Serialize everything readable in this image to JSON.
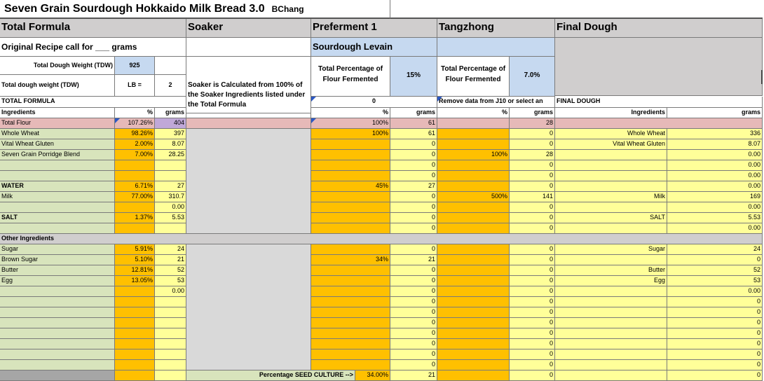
{
  "title": "Seven Grain Sourdough Hokkaido Milk Bread 3.0",
  "author": "BChang",
  "sections": {
    "total_formula": "Total Formula",
    "soaker": "Soaker",
    "preferment": "Preferment 1",
    "tangzhong": "Tangzhong",
    "final_dough": "Final Dough"
  },
  "original_recipe": "Original Recipe call for ___ grams",
  "sourdough_levain": "Sourdough Levain",
  "tdw": {
    "label": "Total Dough Weight (TDW)",
    "value": "925"
  },
  "tdw_lb": {
    "label": "Total dough weight (TDW)",
    "unit": "LB  =",
    "value": "2"
  },
  "soaker_note": "Soaker is Calculated from 100% of the Soaker Ingredients listed under the Total Formula",
  "preferment_pct": {
    "label": "Total Percentage of Flour Fermented",
    "value": "15%"
  },
  "tangzhong_pct": {
    "label": "Total Percentage of Flour Fermented",
    "value": "7.0%"
  },
  "total_formula_label": "TOTAL FORMULA",
  "preferment_zero": "0",
  "tangzhong_note": "Remove data from J10 or select an",
  "final_dough_label": "FINAL DOUGH",
  "headers": {
    "ingredients": "Ingredients",
    "pct": "%",
    "grams": "grams"
  },
  "flour_row": {
    "label": "Total Flour",
    "pct": "107.26%",
    "grams": "404",
    "pre_pct": "100%",
    "pre_g": "61",
    "tz_g": "28"
  },
  "rows": [
    {
      "name": "Whole Wheat",
      "pct": "98.26%",
      "g": "397",
      "pp": "100%",
      "pg": "61",
      "tp": "",
      "tg": "0",
      "fn": "Whole Wheat",
      "fg": "336"
    },
    {
      "name": "Vital Wheat Gluten",
      "pct": "2.00%",
      "g": "8.07",
      "pp": "",
      "pg": "0",
      "tp": "",
      "tg": "0",
      "fn": "Vital Wheat Gluten",
      "fg": "8.07"
    },
    {
      "name": "Seven Grain Porridge Blend",
      "pct": "7.00%",
      "g": "28.25",
      "pp": "",
      "pg": "0",
      "tp": "100%",
      "tg": "28",
      "fn": "",
      "fg": "0.00"
    },
    {
      "name": "",
      "pct": "",
      "g": "",
      "pp": "",
      "pg": "0",
      "tp": "",
      "tg": "0",
      "fn": "",
      "fg": "0.00"
    },
    {
      "name": "",
      "pct": "",
      "g": "",
      "pp": "",
      "pg": "0",
      "tp": "",
      "tg": "0",
      "fn": "",
      "fg": "0.00"
    },
    {
      "name": "WATER",
      "pct": "6.71%",
      "g": "27",
      "pp": "45%",
      "pg": "27",
      "tp": "",
      "tg": "0",
      "fn": "",
      "fg": "0.00",
      "bold": true
    },
    {
      "name": "Milk",
      "pct": "77.00%",
      "g": "310.7",
      "pp": "",
      "pg": "0",
      "tp": "500%",
      "tg": "141",
      "fn": "Milk",
      "fg": "169"
    },
    {
      "name": "",
      "pct": "",
      "g": "0.00",
      "pp": "",
      "pg": "0",
      "tp": "",
      "tg": "0",
      "fn": "",
      "fg": "0.00"
    },
    {
      "name": "SALT",
      "pct": "1.37%",
      "g": "5.53",
      "pp": "",
      "pg": "0",
      "tp": "",
      "tg": "0",
      "fn": "SALT",
      "fg": "5.53",
      "bold": true
    },
    {
      "name": "",
      "pct": "",
      "g": "",
      "pp": "",
      "pg": "0",
      "tp": "",
      "tg": "0",
      "fn": "",
      "fg": "0.00"
    }
  ],
  "other_ingredients": "Other Ingredients",
  "other_rows": [
    {
      "name": "Sugar",
      "pct": "5.91%",
      "g": "24",
      "pp": "",
      "pg": "0",
      "tp": "",
      "tg": "0",
      "fn": "Sugar",
      "fg": "24"
    },
    {
      "name": "Brown Sugar",
      "pct": "5.10%",
      "g": "21",
      "pp": "34%",
      "pg": "21",
      "tp": "",
      "tg": "0",
      "fn": "",
      "fg": "0"
    },
    {
      "name": "Butter",
      "pct": "12.81%",
      "g": "52",
      "pp": "",
      "pg": "0",
      "tp": "",
      "tg": "0",
      "fn": "Butter",
      "fg": "52"
    },
    {
      "name": "Egg",
      "pct": "13.05%",
      "g": "53",
      "pp": "",
      "pg": "0",
      "tp": "",
      "tg": "0",
      "fn": "Egg",
      "fg": "53"
    },
    {
      "name": "",
      "pct": "",
      "g": "0.00",
      "pp": "",
      "pg": "0",
      "tp": "",
      "tg": "0",
      "fn": "",
      "fg": "0.00"
    },
    {
      "name": "",
      "pct": "",
      "g": "",
      "pp": "",
      "pg": "0",
      "tp": "",
      "tg": "0",
      "fn": "",
      "fg": "0"
    },
    {
      "name": "",
      "pct": "",
      "g": "",
      "pp": "",
      "pg": "0",
      "tp": "",
      "tg": "0",
      "fn": "",
      "fg": "0"
    },
    {
      "name": "",
      "pct": "",
      "g": "",
      "pp": "",
      "pg": "0",
      "tp": "",
      "tg": "0",
      "fn": "",
      "fg": "0"
    },
    {
      "name": "",
      "pct": "",
      "g": "",
      "pp": "",
      "pg": "0",
      "tp": "",
      "tg": "0",
      "fn": "",
      "fg": "0"
    },
    {
      "name": "",
      "pct": "",
      "g": "",
      "pp": "",
      "pg": "0",
      "tp": "",
      "tg": "0",
      "fn": "",
      "fg": "0"
    },
    {
      "name": "",
      "pct": "",
      "g": "",
      "pp": "",
      "pg": "0",
      "tp": "",
      "tg": "0",
      "fn": "",
      "fg": "0"
    },
    {
      "name": "",
      "pct": "",
      "g": "",
      "pp": "",
      "pg": "0",
      "tp": "",
      "tg": "0",
      "fn": "",
      "fg": "0"
    }
  ],
  "seed_culture": {
    "label": "Percentage SEED CULTURE  -->",
    "pct": "34.00%",
    "grams": "21",
    "tz_g": "0",
    "final_g": "0"
  },
  "colors": {
    "header_gray": "#d0cece",
    "light_blue": "#c6d9f0",
    "pink": "#e6b9b8",
    "green": "#d8e4bc",
    "orange": "#ffc000",
    "yellow": "#ffff99",
    "soaker_gray": "#d9d9d9",
    "grid": "#7a7a7a"
  }
}
